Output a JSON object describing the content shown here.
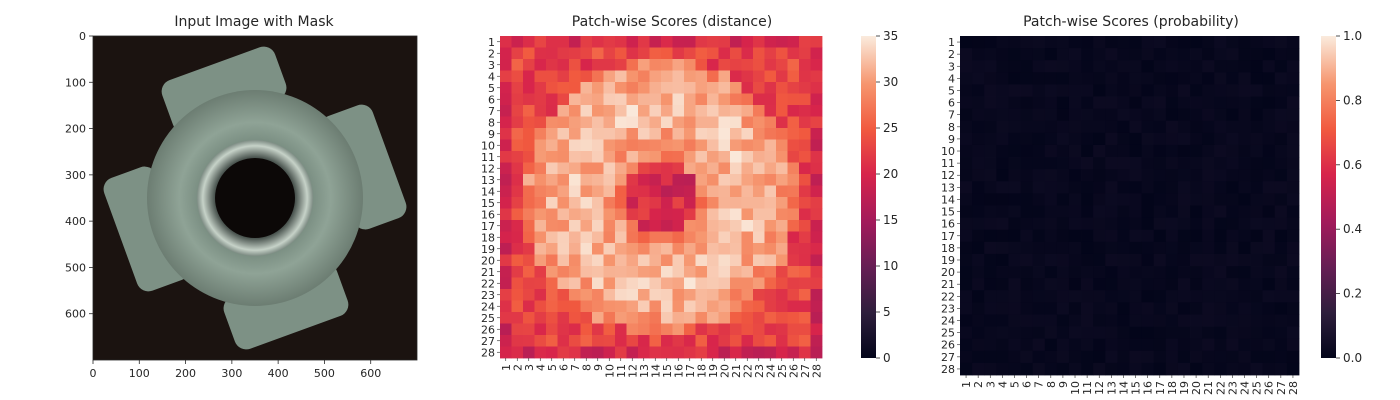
{
  "chart_data": [
    {
      "type": "image",
      "title": "Input Image with Mask",
      "x_ticks": [
        0,
        100,
        200,
        300,
        400,
        500,
        600
      ],
      "y_ticks": [
        0,
        100,
        200,
        300,
        400,
        500,
        600
      ],
      "xlim": [
        0,
        700
      ],
      "ylim": [
        700,
        0
      ],
      "content": "metal-nut photograph (dark background, four-lobed nut with central hole)"
    },
    {
      "type": "heatmap",
      "title": "Patch-wise Scores (distance)",
      "x_labels": [
        "1",
        "2",
        "3",
        "4",
        "5",
        "6",
        "7",
        "8",
        "9",
        "10",
        "11",
        "12",
        "13",
        "14",
        "15",
        "16",
        "17",
        "18",
        "19",
        "20",
        "21",
        "22",
        "23",
        "24",
        "25",
        "26",
        "27",
        "28"
      ],
      "y_labels": [
        "1",
        "2",
        "3",
        "4",
        "5",
        "6",
        "7",
        "8",
        "9",
        "10",
        "11",
        "12",
        "13",
        "14",
        "15",
        "16",
        "17",
        "18",
        "19",
        "20",
        "21",
        "22",
        "23",
        "24",
        "25",
        "26",
        "27",
        "28"
      ],
      "colorbar": {
        "min": 0,
        "max": 35,
        "ticks": [
          0,
          5,
          10,
          15,
          20,
          25,
          30,
          35
        ],
        "colormap": "rocket"
      },
      "pattern": "perimeter values ~20-25, interior values ~28-35, hot ring around center, low values (~15-20) near center columns 13-17"
    },
    {
      "type": "heatmap",
      "title": "Patch-wise Scores (probability)",
      "x_labels": [
        "1",
        "2",
        "3",
        "4",
        "5",
        "6",
        "7",
        "8",
        "9",
        "10",
        "11",
        "12",
        "13",
        "14",
        "15",
        "16",
        "17",
        "18",
        "19",
        "20",
        "21",
        "22",
        "23",
        "24",
        "25",
        "26",
        "27",
        "28"
      ],
      "y_labels": [
        "1",
        "2",
        "3",
        "4",
        "5",
        "6",
        "7",
        "8",
        "9",
        "10",
        "11",
        "12",
        "13",
        "14",
        "15",
        "16",
        "17",
        "18",
        "19",
        "20",
        "21",
        "22",
        "23",
        "24",
        "25",
        "26",
        "27",
        "28"
      ],
      "colorbar": {
        "min": 0.0,
        "max": 1.0,
        "ticks": [
          "0.0",
          "0.2",
          "0.4",
          "0.6",
          "0.8",
          "1.0"
        ],
        "colormap": "rocket"
      },
      "pattern": "all values near 0.0 (~0.00-0.03)"
    }
  ]
}
